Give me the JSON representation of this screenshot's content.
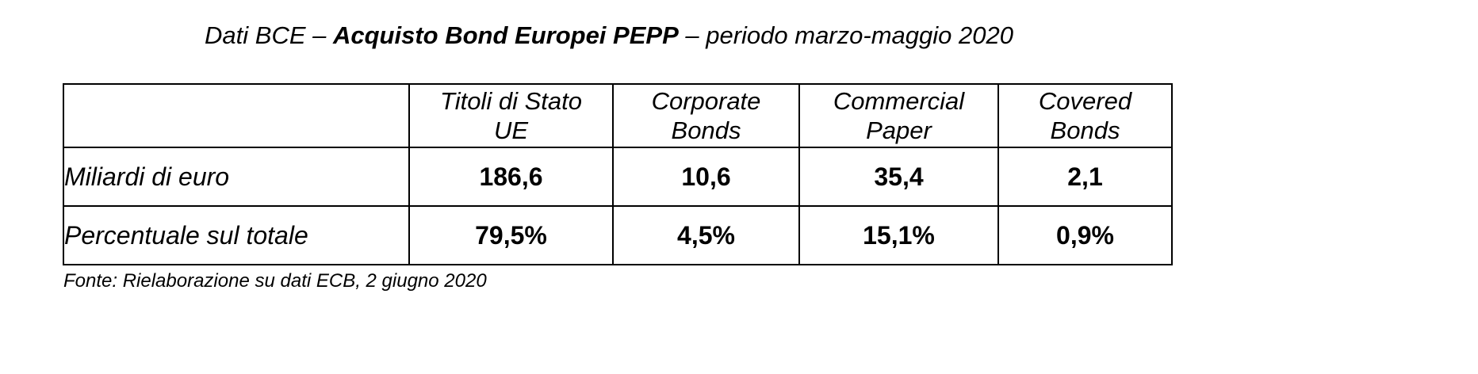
{
  "title": {
    "prefix": "Dati BCE – ",
    "bold": "Acquisto Bond Europei PEPP",
    "suffix": " – periodo marzo-maggio 2020"
  },
  "table": {
    "columns": [
      {
        "line1": "Titoli di Stato",
        "line2": "UE"
      },
      {
        "line1": "Corporate",
        "line2": "Bonds"
      },
      {
        "line1": "Commercial",
        "line2": "Paper"
      },
      {
        "line1": "Covered",
        "line2": "Bonds"
      }
    ],
    "rows": [
      {
        "label": "Miliardi di euro",
        "values": [
          "186,6",
          "10,6",
          "35,4",
          "2,1"
        ]
      },
      {
        "label": "Percentuale sul totale",
        "values": [
          "79,5%",
          "4,5%",
          "15,1%",
          "0,9%"
        ]
      }
    ]
  },
  "source": "Fonte: Rielaborazione su dati ECB, 2 giugno 2020"
}
